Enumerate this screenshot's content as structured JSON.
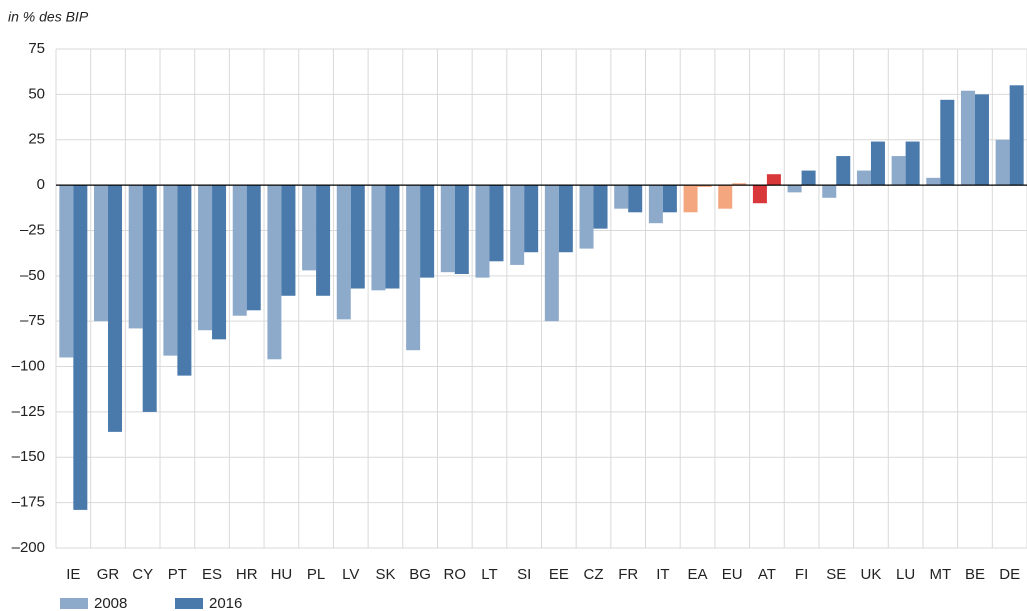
{
  "chart_data": {
    "type": "bar",
    "y_label": "in % des BIP",
    "categories": [
      "IE",
      "GR",
      "CY",
      "PT",
      "ES",
      "HR",
      "HU",
      "PL",
      "LV",
      "SK",
      "BG",
      "RO",
      "LT",
      "SI",
      "EE",
      "CZ",
      "FR",
      "IT",
      "EA",
      "EU",
      "AT",
      "FI",
      "SE",
      "UK",
      "LU",
      "MT",
      "BE",
      "DE"
    ],
    "series": [
      {
        "name": "2008",
        "color": "#8eaacb",
        "values": [
          -95,
          -75,
          -79,
          -94,
          -80,
          -72,
          -96,
          -47,
          -74,
          -58,
          -91,
          -48,
          -51,
          -44,
          -75,
          -35,
          -13,
          -21,
          -15,
          -13,
          -10,
          -4,
          -7,
          8,
          16,
          4,
          52,
          25
        ],
        "colors": [
          "#8eaacb",
          "#8eaacb",
          "#8eaacb",
          "#8eaacb",
          "#8eaacb",
          "#8eaacb",
          "#8eaacb",
          "#8eaacb",
          "#8eaacb",
          "#8eaacb",
          "#8eaacb",
          "#8eaacb",
          "#8eaacb",
          "#8eaacb",
          "#8eaacb",
          "#8eaacb",
          "#8eaacb",
          "#8eaacb",
          "#f4a67f",
          "#f4a67f",
          "#d9383a",
          "#8eaacb",
          "#8eaacb",
          "#8eaacb",
          "#8eaacb",
          "#8eaacb",
          "#8eaacb",
          "#8eaacb"
        ]
      },
      {
        "name": "2016",
        "color": "#4a7aab",
        "values": [
          -179,
          -136,
          -125,
          -105,
          -85,
          -69,
          -61,
          -61,
          -57,
          -57,
          -51,
          -49,
          -42,
          -37,
          -37,
          -24,
          -15,
          -15,
          -1,
          1,
          6,
          8,
          16,
          24,
          24,
          47,
          50,
          55
        ],
        "colors": [
          "#4a7aab",
          "#4a7aab",
          "#4a7aab",
          "#4a7aab",
          "#4a7aab",
          "#4a7aab",
          "#4a7aab",
          "#4a7aab",
          "#4a7aab",
          "#4a7aab",
          "#4a7aab",
          "#4a7aab",
          "#4a7aab",
          "#4a7aab",
          "#4a7aab",
          "#4a7aab",
          "#4a7aab",
          "#4a7aab",
          "#f4a67f",
          "#f4a67f",
          "#d9383a",
          "#4a7aab",
          "#4a7aab",
          "#4a7aab",
          "#4a7aab",
          "#4a7aab",
          "#4a7aab",
          "#4a7aab"
        ]
      }
    ],
    "ylim": [
      -200,
      75
    ],
    "yticks": [
      75,
      50,
      25,
      0,
      {
        "value": -25,
        "label": "–25"
      },
      {
        "value": -50,
        "label": "–50"
      },
      {
        "value": -75,
        "label": "–75"
      },
      {
        "value": -100,
        "label": "–100"
      },
      {
        "value": -125,
        "label": "–125"
      },
      {
        "value": -150,
        "label": "–150"
      },
      {
        "value": -175,
        "label": "–175"
      },
      {
        "value": -200,
        "label": "–200"
      }
    ],
    "grid": true
  }
}
